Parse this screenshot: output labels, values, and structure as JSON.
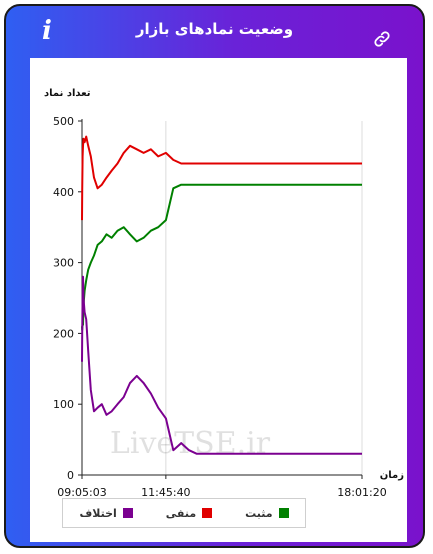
{
  "header": {
    "title": "وضعیت نمادهای بازار",
    "info_icon": "i",
    "link_icon": "link-icon"
  },
  "watermark": "LiveTSE.ir",
  "legend": [
    {
      "label": "مثبت",
      "color": "#008000"
    },
    {
      "label": "منفی",
      "color": "#e00000"
    },
    {
      "label": "اختلاف",
      "color": "#7b0090"
    }
  ],
  "chart_data": {
    "type": "line",
    "ylabel": "تعداد نماد",
    "xlabel": "زمان",
    "ylim": [
      0,
      500
    ],
    "yticks": [
      0,
      100,
      200,
      300,
      400,
      500
    ],
    "xticks": [
      "09:05:03",
      "11:45:40",
      "18:01:20"
    ],
    "grid": "vertical",
    "legend_position": "bottom",
    "x": [
      "09:05:03",
      "09:05:30",
      "09:06:10",
      "09:07:00",
      "09:08:00",
      "09:10:00",
      "09:13:00",
      "09:17:00",
      "09:22:00",
      "09:28:00",
      "09:35:00",
      "09:43:00",
      "09:52:00",
      "10:02:00",
      "10:13:00",
      "10:25:00",
      "10:37:00",
      "10:50:00",
      "11:03:00",
      "11:17:00",
      "11:31:00",
      "11:45:40",
      "12:00:00",
      "12:15:00",
      "12:30:00",
      "12:45:00",
      "13:00:00",
      "13:20:00",
      "13:45:00",
      "14:15:00",
      "14:50:00",
      "15:30:00",
      "16:15:00",
      "17:05:00",
      "18:01:20"
    ],
    "series": [
      {
        "name": "مثبت",
        "color": "#008000",
        "values": [
          210,
          205,
          215,
          212,
          240,
          260,
          275,
          290,
          300,
          310,
          325,
          330,
          340,
          335,
          345,
          350,
          340,
          330,
          335,
          345,
          350,
          360,
          405,
          410,
          410,
          410,
          410,
          410,
          410,
          410,
          410,
          410,
          410,
          410,
          410
        ]
      },
      {
        "name": "منفی",
        "color": "#e00000",
        "values": [
          360,
          400,
          450,
          465,
          475,
          470,
          478,
          465,
          450,
          420,
          405,
          410,
          420,
          430,
          440,
          455,
          465,
          460,
          455,
          460,
          450,
          455,
          445,
          440,
          440,
          440,
          440,
          440,
          440,
          440,
          440,
          440,
          440,
          440,
          440
        ]
      },
      {
        "name": "اختلاف",
        "color": "#7b0090",
        "values": [
          160,
          200,
          250,
          280,
          250,
          230,
          220,
          175,
          120,
          90,
          95,
          100,
          85,
          90,
          100,
          110,
          130,
          140,
          130,
          115,
          95,
          80,
          35,
          45,
          35,
          30,
          30,
          30,
          30,
          30,
          30,
          30,
          30,
          30,
          30
        ]
      }
    ]
  }
}
